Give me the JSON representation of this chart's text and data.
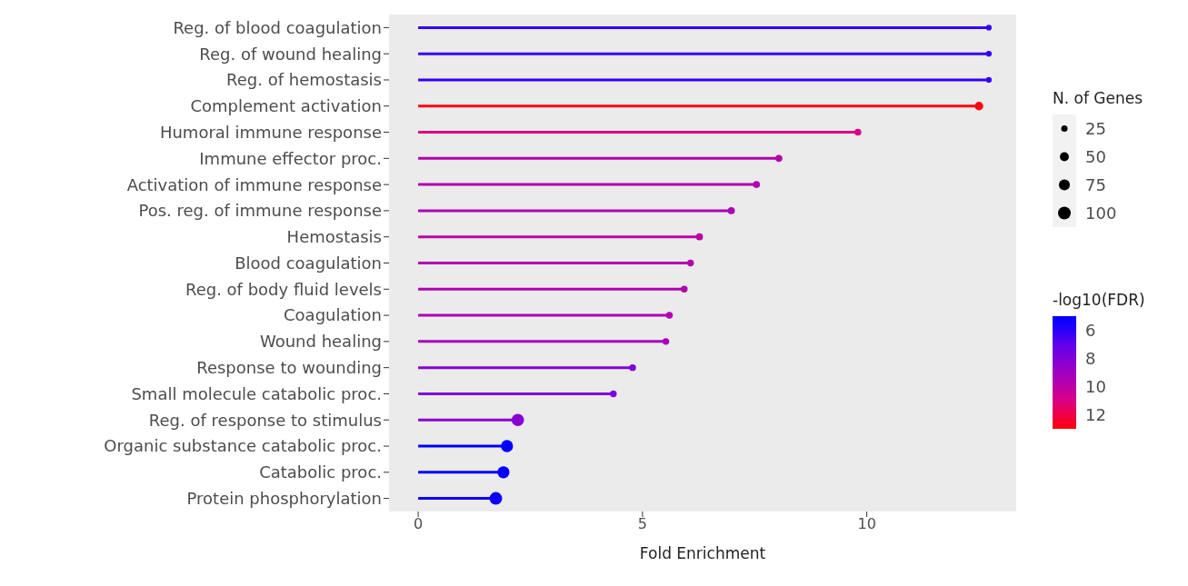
{
  "chart_data": {
    "type": "lollipop",
    "orientation": "horizontal",
    "xlabel": "Fold Enrichment",
    "legend_title": "N. of Genes",
    "clabel": "-log10(FDR)",
    "categories": [
      "Reg. of blood coagulation",
      "Reg. of wound healing",
      "Reg. of hemostasis",
      "Complement activation",
      "Humoral immune response",
      "Immune effector proc.",
      "Activation of immune response",
      "Pos. reg. of immune response",
      "Hemostasis",
      "Blood coagulation",
      "Reg. of body fluid levels",
      "Coagulation",
      "Wound healing",
      "Response to wounding",
      "Small molecule catabolic proc.",
      "Reg. of response to stimulus",
      "Organic substance catabolic proc.",
      "Catabolic proc.",
      "Protein phosphorylation"
    ],
    "values": [
      12.72,
      12.72,
      12.72,
      12.5,
      9.8,
      8.04,
      7.54,
      6.98,
      6.27,
      6.07,
      5.93,
      5.6,
      5.52,
      4.78,
      4.35,
      2.22,
      1.98,
      1.9,
      1.73
    ],
    "sizes": [
      20,
      20,
      20,
      45,
      30,
      30,
      30,
      30,
      30,
      28,
      28,
      28,
      28,
      28,
      28,
      95,
      90,
      90,
      100
    ],
    "size_legend": [
      25,
      50,
      75,
      100
    ],
    "cvalues": [
      6.2,
      6.2,
      6.2,
      12.8,
      11,
      9.8,
      9.6,
      9.4,
      10,
      9.7,
      9.6,
      9.6,
      9.3,
      8,
      7.9,
      8.3,
      5.3,
      5.3,
      5.5
    ],
    "clim": [
      5.3,
      12.8
    ],
    "cticks": [
      6,
      8,
      10,
      12
    ],
    "xlim": [
      -0.65,
      13.33
    ],
    "xticks": [
      0,
      5,
      10
    ]
  }
}
